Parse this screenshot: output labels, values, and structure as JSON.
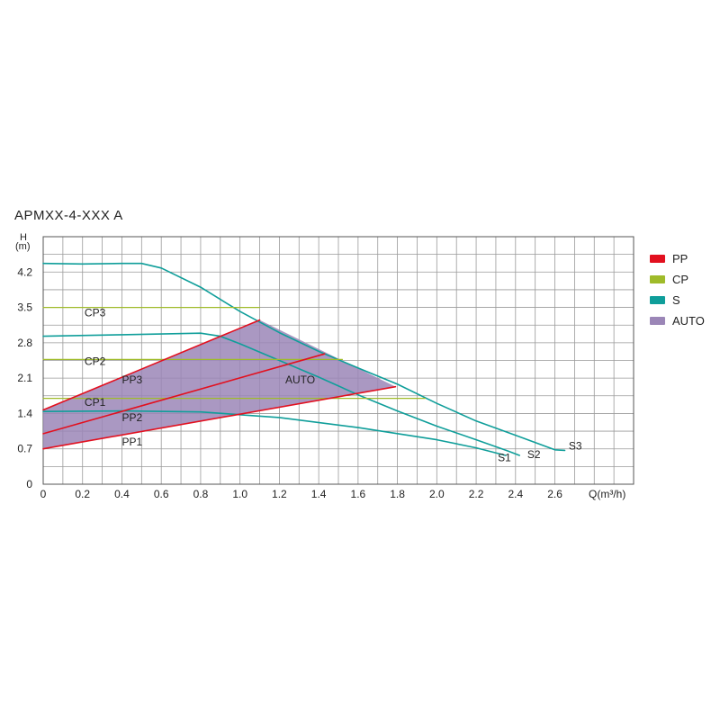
{
  "chart_data": {
    "type": "line",
    "title": "APMXX-4-XXX A",
    "xlabel": "Q(m³/h)",
    "ylabel": "H\n(m)",
    "ylabel_top": "H",
    "ylabel_unit": "(m)",
    "xlim": [
      0,
      3.0
    ],
    "ylim": [
      0,
      4.9
    ],
    "x_ticks": [
      "0",
      "0.2",
      "0.4",
      "0.6",
      "0.8",
      "1.0",
      "1.2",
      "1.4",
      "1.6",
      "1.8",
      "2.0",
      "2.2",
      "2.4",
      "2.6"
    ],
    "x_tick_values": [
      0,
      0.2,
      0.4,
      0.6,
      0.8,
      1.0,
      1.2,
      1.4,
      1.6,
      1.8,
      2.0,
      2.2,
      2.4,
      2.6
    ],
    "y_ticks": [
      "0",
      "0.7",
      "1.4",
      "2.1",
      "2.8",
      "3.5",
      "4.2"
    ],
    "y_tick_values": [
      0,
      0.7,
      1.4,
      2.1,
      2.8,
      3.5,
      4.2
    ],
    "grid": true,
    "legend_position": "right",
    "legend": [
      {
        "label": "PP",
        "color": "#e2101f"
      },
      {
        "label": "CP",
        "color": "#9fbb2a"
      },
      {
        "label": "S",
        "color": "#0f9e9a"
      },
      {
        "label": "AUTO",
        "color": "#9b86b7"
      }
    ],
    "auto_region": {
      "label": "AUTO",
      "color": "#9b86b7",
      "points": [
        [
          0,
          0.7
        ],
        [
          0,
          1.47
        ],
        [
          1.1,
          3.25
        ],
        [
          1.79,
          1.93
        ]
      ]
    },
    "series": [
      {
        "name": "S3",
        "group": "S",
        "color": "#0f9e9a",
        "points": [
          [
            0,
            4.37
          ],
          [
            0.2,
            4.36
          ],
          [
            0.4,
            4.37
          ],
          [
            0.5,
            4.37
          ],
          [
            0.6,
            4.28
          ],
          [
            0.8,
            3.9
          ],
          [
            1.0,
            3.42
          ],
          [
            1.2,
            3.0
          ],
          [
            1.4,
            2.63
          ],
          [
            1.6,
            2.3
          ],
          [
            1.8,
            1.98
          ],
          [
            2.0,
            1.6
          ],
          [
            2.2,
            1.25
          ],
          [
            2.4,
            0.97
          ],
          [
            2.6,
            0.68
          ],
          [
            2.65,
            0.67
          ]
        ]
      },
      {
        "name": "S2",
        "group": "S",
        "color": "#0f9e9a",
        "points": [
          [
            0,
            2.93
          ],
          [
            0.4,
            2.96
          ],
          [
            0.8,
            2.99
          ],
          [
            0.9,
            2.93
          ],
          [
            1.0,
            2.78
          ],
          [
            1.2,
            2.45
          ],
          [
            1.4,
            2.12
          ],
          [
            1.6,
            1.77
          ],
          [
            1.8,
            1.45
          ],
          [
            2.0,
            1.15
          ],
          [
            2.2,
            0.88
          ],
          [
            2.36,
            0.66
          ],
          [
            2.42,
            0.57
          ]
        ]
      },
      {
        "name": "S1",
        "group": "S",
        "color": "#0f9e9a",
        "points": [
          [
            0,
            1.44
          ],
          [
            0.4,
            1.45
          ],
          [
            0.8,
            1.43
          ],
          [
            1.2,
            1.32
          ],
          [
            1.6,
            1.12
          ],
          [
            2.0,
            0.88
          ],
          [
            2.2,
            0.72
          ],
          [
            2.35,
            0.57
          ]
        ]
      },
      {
        "name": "CP3",
        "group": "CP",
        "color": "#9fbb2a",
        "points": [
          [
            0,
            3.5
          ],
          [
            1.1,
            3.5
          ]
        ]
      },
      {
        "name": "CP2",
        "group": "CP",
        "color": "#9fbb2a",
        "points": [
          [
            0,
            2.47
          ],
          [
            1.52,
            2.47
          ]
        ]
      },
      {
        "name": "CP1",
        "group": "CP",
        "color": "#9fbb2a",
        "points": [
          [
            0,
            1.7
          ],
          [
            1.94,
            1.7
          ]
        ]
      },
      {
        "name": "PP3",
        "group": "PP",
        "color": "#e2101f",
        "points": [
          [
            0,
            1.47
          ],
          [
            1.1,
            3.25
          ]
        ]
      },
      {
        "name": "PP2",
        "group": "PP",
        "color": "#e2101f",
        "points": [
          [
            0,
            1.0
          ],
          [
            1.43,
            2.58
          ]
        ]
      },
      {
        "name": "PP1",
        "group": "PP",
        "color": "#e2101f",
        "points": [
          [
            0,
            0.7
          ],
          [
            1.79,
            1.93
          ]
        ]
      }
    ],
    "annotations": [
      {
        "text": "CP3",
        "x": 0.21,
        "y": 3.32
      },
      {
        "text": "CP2",
        "x": 0.21,
        "y": 2.36
      },
      {
        "text": "CP1",
        "x": 0.21,
        "y": 1.55
      },
      {
        "text": "PP3",
        "x": 0.4,
        "y": 2.0
      },
      {
        "text": "PP2",
        "x": 0.4,
        "y": 1.25
      },
      {
        "text": "PP1",
        "x": 0.4,
        "y": 0.77
      },
      {
        "text": "AUTO",
        "x": 1.23,
        "y": 2.0
      },
      {
        "text": "S3",
        "x": 2.67,
        "y": 0.69
      },
      {
        "text": "S2",
        "x": 2.46,
        "y": 0.52
      },
      {
        "text": "S1",
        "x": 2.31,
        "y": 0.45
      }
    ]
  }
}
